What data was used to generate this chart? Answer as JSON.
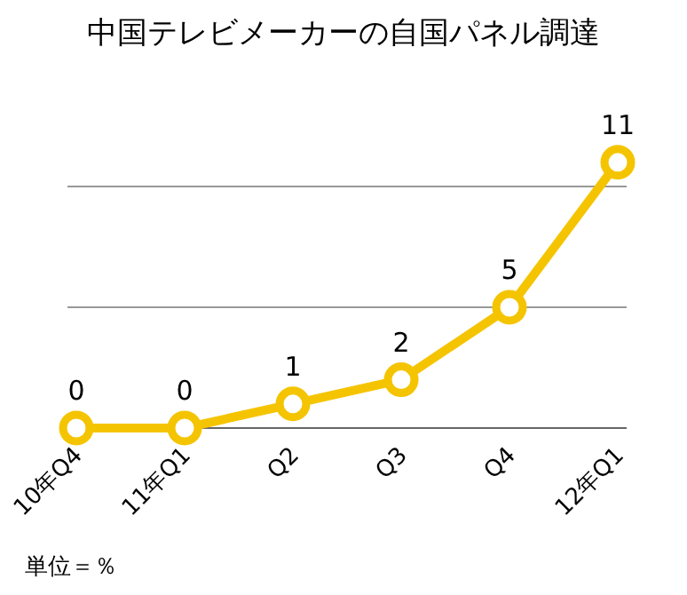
{
  "chart_data": {
    "type": "line",
    "title": "中国テレビメーカーの自国パネル調達",
    "categories": [
      "10年Q4",
      "11年Q1",
      "Q2",
      "Q3",
      "Q4",
      "12年Q1"
    ],
    "series": [
      {
        "color": "#f5c400",
        "values": [
          0,
          0,
          1,
          2,
          5,
          11
        ]
      }
    ],
    "ref_lines": [
      {
        "axis": "y",
        "value": 5,
        "color": "#999999"
      },
      {
        "axis": "y",
        "value": 10,
        "color": "#999999"
      }
    ],
    "tick_labels": "x",
    "marker": "circle",
    "line_style": "solid",
    "data_labels": true,
    "annotations": [
      "単位＝％"
    ]
  }
}
